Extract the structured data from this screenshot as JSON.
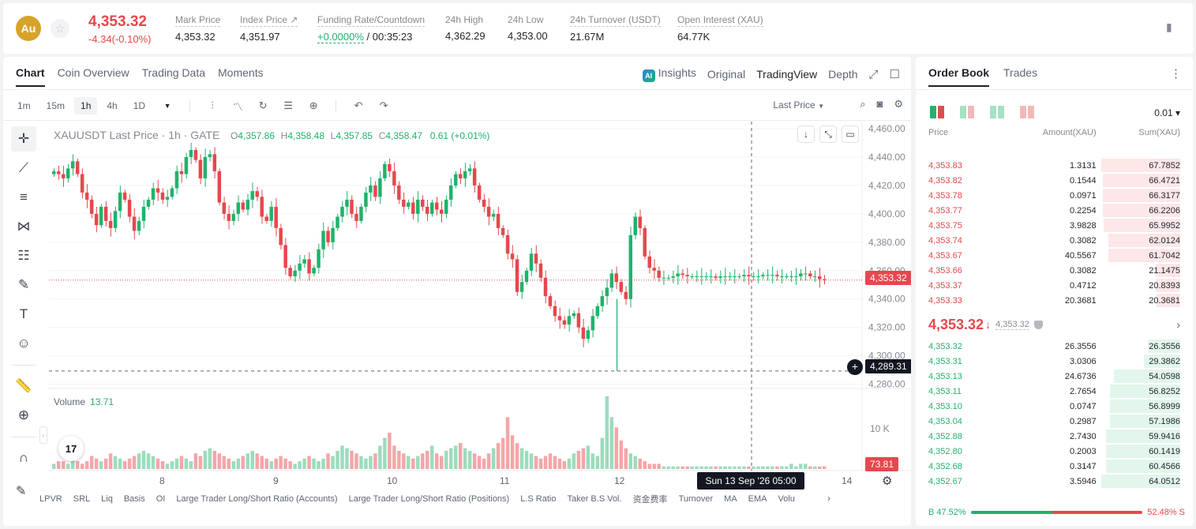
{
  "header": {
    "coin_symbol": "Au",
    "star_icon": "star-icon",
    "last_price": "4,353.32",
    "change": "-4.34(-0.10%)",
    "stats": [
      {
        "label": "Mark Price",
        "value": "4,353.32"
      },
      {
        "label": "Index Price ↗",
        "value": "4,351.97"
      },
      {
        "label": "Funding Rate/Countdown",
        "value_green": "+0.0000%",
        "value": "/ 00:35:23"
      },
      {
        "label": "24h High",
        "value": "4,362.29"
      },
      {
        "label": "24h Low",
        "value": "4,353.00"
      },
      {
        "label": "24h Turnover (USDT)",
        "value": "21.67M"
      },
      {
        "label": "Open Interest (XAU)",
        "value": "64.77K"
      }
    ]
  },
  "chart_panel": {
    "tabs": [
      "Chart",
      "Coin Overview",
      "Trading Data",
      "Moments"
    ],
    "active_tab": "Chart",
    "view_tabs": [
      "Insights",
      "Original",
      "TradingView",
      "Depth"
    ],
    "active_view": "TradingView",
    "ai_badge": "AI",
    "timeframes": [
      "1m",
      "15m",
      "1h",
      "4h",
      "1D"
    ],
    "active_timeframe": "1h",
    "price_source": "Last Price",
    "legend": {
      "title": "XAUUSDT Last Price · 1h · GATE",
      "o_label": "O",
      "o": "4,357.86",
      "h_label": "H",
      "h": "4,358.48",
      "l_label": "L",
      "l": "4,357.85",
      "c_label": "C",
      "c": "4,358.47",
      "change": "0.61 (+0.01%)"
    },
    "volume_label": "Volume",
    "volume_value": "13.71",
    "current_price_tag": "4,353.32",
    "crosshair_price_tag": "4,289.31",
    "crosshair_time": "Sun 13 Sep '26   05:00",
    "volume_axis_label": "10 K",
    "volume_current_tag": "73.81",
    "tv_logo": "17",
    "indicators": [
      "LPVR",
      "SRL",
      "Liq",
      "Basis",
      "OI",
      "Large Trader Long/Short Ratio (Accounts)",
      "Large Trader Long/Short Ratio (Positions)",
      "L.S Ratio",
      "Taker B.S Vol.",
      "资金费率",
      "Turnover",
      "MA",
      "EMA",
      "Volu"
    ]
  },
  "chart_data": {
    "type": "candlestick",
    "y_ticks": [
      4460,
      4440,
      4420,
      4400,
      4380,
      4360,
      4340,
      4320,
      4300,
      4280
    ],
    "y_tick_labels": [
      "4,460.00",
      "4,440.00",
      "4,420.00",
      "4,400.00",
      "4,380.00",
      "4,360.00",
      "4,340.00",
      "4,320.00",
      "4,300.00",
      "4,280.00"
    ],
    "ylim": [
      4277,
      4465
    ],
    "x_labels": [
      "8",
      "9",
      "10",
      "11",
      "12",
      "14"
    ],
    "current_price": 4353.32,
    "crosshair_price": 4289.31,
    "colors": {
      "up": "#20b26c",
      "down": "#e5484d"
    },
    "close_path": [
      4430,
      4428,
      4425,
      4432,
      4437,
      4428,
      4415,
      4410,
      4400,
      4392,
      4405,
      4395,
      4390,
      4402,
      4415,
      4410,
      4398,
      4388,
      4395,
      4405,
      4410,
      4418,
      4415,
      4410,
      4412,
      4418,
      4430,
      4428,
      4440,
      4445,
      4438,
      4425,
      4440,
      4442,
      4430,
      4408,
      4400,
      4395,
      4400,
      4408,
      4403,
      4410,
      4416,
      4412,
      4398,
      4395,
      4405,
      4390,
      4378,
      4362,
      4356,
      4360,
      4365,
      4368,
      4358,
      4362,
      4375,
      4388,
      4380,
      4390,
      4398,
      4405,
      4410,
      4400,
      4395,
      4405,
      4415,
      4420,
      4412,
      4425,
      4435,
      4430,
      4420,
      4410,
      4405,
      4408,
      4400,
      4410,
      4405,
      4400,
      4408,
      4403,
      4400,
      4410,
      4420,
      4428,
      4425,
      4430,
      4432,
      4420,
      4410,
      4405,
      4398,
      4400,
      4390,
      4385,
      4372,
      4368,
      4345,
      4352,
      4360,
      4372,
      4365,
      4355,
      4342,
      4335,
      4328,
      4325,
      4322,
      4328,
      4330,
      4320,
      4312,
      4318,
      4328,
      4335,
      4342,
      4348,
      4358,
      4352,
      4345,
      4340,
      4385,
      4398,
      4390,
      4370,
      4362,
      4360,
      4355,
      4355,
      4355,
      4356,
      4358,
      4357,
      4356,
      4356,
      4356,
      4356,
      4356,
      4356,
      4355,
      4356,
      4356,
      4356,
      4356,
      4356,
      4357,
      4356,
      4356,
      4356,
      4357,
      4357,
      4357,
      4356,
      4356,
      4356,
      4356,
      4356,
      4358,
      4358,
      4356,
      4356,
      4354,
      4353.3
    ],
    "volume_path": [
      2,
      3,
      3,
      2,
      4,
      3,
      2,
      3,
      5,
      4,
      3,
      4,
      6,
      5,
      4,
      3,
      4,
      5,
      6,
      7,
      6,
      5,
      4,
      3,
      2,
      3,
      4,
      5,
      4,
      3,
      6,
      5,
      7,
      8,
      7,
      6,
      5,
      4,
      3,
      4,
      5,
      6,
      7,
      6,
      5,
      4,
      3,
      4,
      5,
      4,
      3,
      2,
      3,
      4,
      5,
      4,
      3,
      4,
      6,
      5,
      7,
      9,
      8,
      7,
      6,
      5,
      4,
      5,
      6,
      9,
      12,
      14,
      9,
      7,
      6,
      5,
      4,
      5,
      6,
      7,
      9,
      6,
      5,
      7,
      8,
      9,
      10,
      8,
      7,
      6,
      5,
      4,
      6,
      8,
      10,
      12,
      20,
      13,
      10,
      8,
      7,
      6,
      5,
      4,
      5,
      6,
      5,
      4,
      3,
      4,
      6,
      7,
      8,
      9,
      6,
      5,
      12,
      28,
      20,
      16,
      11,
      8,
      6,
      5,
      4,
      3,
      2,
      2,
      2,
      1,
      1,
      1,
      1,
      1,
      1,
      1,
      1,
      1,
      1,
      1,
      1,
      1,
      1,
      1,
      1,
      1,
      1,
      1,
      1,
      1,
      1,
      1,
      1,
      1,
      1,
      1,
      2,
      1,
      2,
      2,
      1,
      1
    ]
  },
  "order_book": {
    "tabs": [
      "Order Book",
      "Trades"
    ],
    "active_tab": "Order Book",
    "tick_size": "0.01 ▾",
    "headers": [
      "Price",
      "Amount(XAU)",
      "Sum(XAU)"
    ],
    "asks": [
      {
        "price": "4,353.83",
        "amount": "1.3131",
        "sum": "67.7852",
        "depth": 1.0
      },
      {
        "price": "4,353.82",
        "amount": "0.1544",
        "sum": "66.4721",
        "depth": 0.98
      },
      {
        "price": "4,353.78",
        "amount": "0.0971",
        "sum": "66.3177",
        "depth": 0.978
      },
      {
        "price": "4,353.77",
        "amount": "0.2254",
        "sum": "66.2206",
        "depth": 0.977
      },
      {
        "price": "4,353.75",
        "amount": "3.9828",
        "sum": "65.9952",
        "depth": 0.974
      },
      {
        "price": "4,353.74",
        "amount": "0.3082",
        "sum": "62.0124",
        "depth": 0.915
      },
      {
        "price": "4,353.67",
        "amount": "40.5567",
        "sum": "61.7042",
        "depth": 0.91
      },
      {
        "price": "4,353.66",
        "amount": "0.3082",
        "sum": "21.1475",
        "depth": 0.312
      },
      {
        "price": "4,353.37",
        "amount": "0.4712",
        "sum": "20.8393",
        "depth": 0.307
      },
      {
        "price": "4,353.33",
        "amount": "20.3681",
        "sum": "20.3681",
        "depth": 0.3
      }
    ],
    "mid_price": "4,353.32",
    "mid_mark": "4,353.32",
    "bids": [
      {
        "price": "4,353.32",
        "amount": "26.3556",
        "sum": "26.3556",
        "depth": 0.411
      },
      {
        "price": "4,353.31",
        "amount": "3.0306",
        "sum": "29.3862",
        "depth": 0.459
      },
      {
        "price": "4,353.13",
        "amount": "24.6736",
        "sum": "54.0598",
        "depth": 0.844
      },
      {
        "price": "4,353.11",
        "amount": "2.7654",
        "sum": "56.8252",
        "depth": 0.888
      },
      {
        "price": "4,353.10",
        "amount": "0.0747",
        "sum": "56.8999",
        "depth": 0.889
      },
      {
        "price": "4,353.04",
        "amount": "0.2987",
        "sum": "57.1986",
        "depth": 0.893
      },
      {
        "price": "4,352.88",
        "amount": "2.7430",
        "sum": "59.9416",
        "depth": 0.936
      },
      {
        "price": "4,352.80",
        "amount": "0.2003",
        "sum": "60.1419",
        "depth": 0.939
      },
      {
        "price": "4,352.68",
        "amount": "0.3147",
        "sum": "60.4566",
        "depth": 0.944
      },
      {
        "price": "4,352.67",
        "amount": "3.5946",
        "sum": "64.0512",
        "depth": 1.0
      }
    ],
    "buy_ratio": "B 47.52%",
    "sell_ratio": "52.48% S",
    "buy_fraction": 0.4752
  }
}
